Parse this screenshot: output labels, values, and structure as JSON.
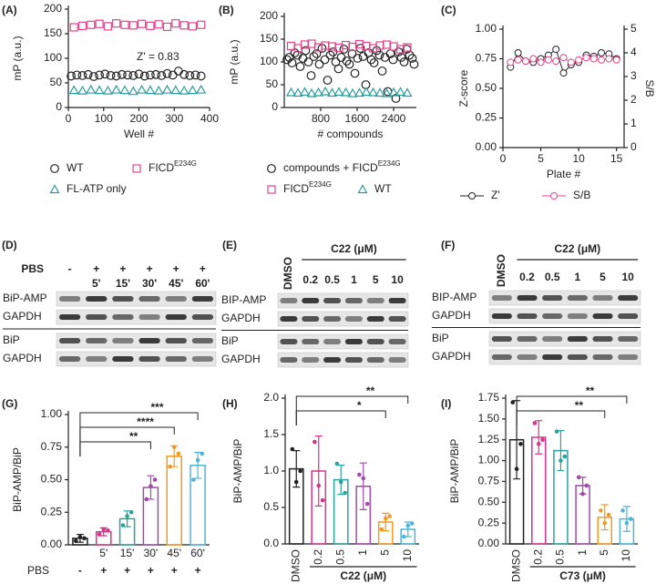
{
  "chart_data": [
    {
      "panel": "(A)",
      "type": "scatter",
      "xlabel": "Well #",
      "ylabel": "mP (a.u.)",
      "annotation": "Z' = 0.83",
      "xlim": [
        0,
        400
      ],
      "xticks": [
        0,
        100,
        200,
        300,
        400
      ],
      "ylim": [
        0,
        200
      ],
      "yticks": [
        0,
        50,
        100,
        150,
        200
      ],
      "series": [
        {
          "name": "WT",
          "color": "#222222",
          "marker": "circle",
          "x": [
            8,
            24,
            40,
            56,
            72,
            88,
            104,
            120,
            136,
            152,
            168,
            184,
            200,
            216,
            232,
            248,
            264,
            280,
            296,
            312,
            328,
            344,
            360,
            376
          ],
          "values": [
            64,
            66,
            65,
            67,
            63,
            66,
            68,
            65,
            64,
            67,
            66,
            65,
            68,
            64,
            66,
            67,
            65,
            69,
            66,
            74,
            67,
            65,
            66,
            64
          ]
        },
        {
          "name": "FICD",
          "superscript": "E234G",
          "color": "#e2458c",
          "marker": "square",
          "x": [
            16,
            40,
            64,
            88,
            112,
            136,
            160,
            184,
            208,
            232,
            256,
            280,
            304,
            328,
            352,
            376
          ],
          "values": [
            163,
            166,
            168,
            170,
            165,
            171,
            168,
            167,
            170,
            166,
            169,
            164,
            171,
            167,
            165,
            168
          ]
        },
        {
          "name": "FL-ATP only",
          "color": "#2a9d9b",
          "marker": "triangle",
          "x": [
            16,
            40,
            64,
            88,
            112,
            136,
            160,
            184,
            208,
            232,
            256,
            280,
            304,
            328,
            352,
            376
          ],
          "values": [
            35,
            34,
            36,
            35,
            34,
            36,
            35,
            33,
            36,
            35,
            34,
            36,
            35,
            34,
            35,
            36
          ]
        }
      ]
    },
    {
      "panel": "(B)",
      "type": "scatter",
      "xlabel": "# compounds",
      "ylabel": "mP (a.u.)",
      "xlim": [
        0,
        2900
      ],
      "xticks": [
        800,
        1600,
        2400
      ],
      "ylim": [
        0,
        200
      ],
      "yticks": [
        0,
        50,
        100,
        150,
        200
      ],
      "series": [
        {
          "name": "compounds + FICD",
          "superscript": "E234G",
          "color": "#222222",
          "marker": "circle",
          "x": [
            60,
            110,
            170,
            230,
            290,
            350,
            410,
            470,
            530,
            590,
            650,
            710,
            770,
            830,
            890,
            950,
            1010,
            1070,
            1130,
            1190,
            1250,
            1310,
            1370,
            1430,
            1490,
            1550,
            1610,
            1670,
            1730,
            1790,
            1850,
            1910,
            1970,
            2030,
            2090,
            2150,
            2210,
            2270,
            2330,
            2390,
            2450,
            2510,
            2570,
            2630,
            2690,
            2750,
            2810,
            2850
          ],
          "values": [
            105,
            110,
            98,
            120,
            115,
            90,
            108,
            125,
            100,
            70,
            112,
            118,
            95,
            130,
            105,
            60,
            115,
            122,
            100,
            85,
            110,
            128,
            102,
            95,
            118,
            75,
            108,
            130,
            112,
            50,
            120,
            105,
            98,
            125,
            115,
            80,
            110,
            35,
            118,
            105,
            20,
            122,
            110,
            100,
            128,
            115,
            108,
            95
          ]
        },
        {
          "name": "FICD",
          "superscript": "E234G",
          "color": "#e2458c",
          "marker": "square",
          "x": [
            150,
            300,
            450,
            600,
            750,
            900,
            1050,
            1200,
            1350,
            1500,
            1650,
            1800,
            1950,
            2100,
            2250,
            2400,
            2550,
            2700
          ],
          "values": [
            135,
            130,
            138,
            140,
            132,
            136,
            134,
            131,
            137,
            133,
            139,
            135,
            130,
            136,
            138,
            134,
            128,
            132
          ]
        },
        {
          "name": "WT",
          "color": "#2a9d9b",
          "marker": "triangle",
          "x": [
            150,
            300,
            450,
            600,
            750,
            900,
            1050,
            1200,
            1350,
            1500,
            1650,
            1800,
            1950,
            2100,
            2250,
            2400,
            2550,
            2700
          ],
          "values": [
            33,
            32,
            34,
            31,
            33,
            35,
            32,
            34,
            33,
            31,
            32,
            34,
            33,
            32,
            31,
            33,
            34,
            32
          ]
        }
      ]
    },
    {
      "panel": "(C)",
      "type": "line",
      "xlabel": "Plate #",
      "ylabel": "Z-score",
      "y2label": "S/B",
      "x": [
        1,
        2,
        3,
        4,
        5,
        6,
        7,
        8,
        9,
        10,
        11,
        12,
        13,
        14,
        15
      ],
      "xlim": [
        0,
        16
      ],
      "xticks": [
        0,
        5,
        10,
        15
      ],
      "ylim": [
        0,
        1
      ],
      "yticks": [
        {
          "value": 0,
          "label": "0.00"
        },
        0.25,
        {
          "value": 0.5,
          "label": "0.50"
        },
        0.75,
        {
          "value": 1,
          "label": "1.00"
        }
      ],
      "y2lim": [
        0,
        5
      ],
      "y2ticks": [
        0,
        1,
        2,
        3,
        4,
        5
      ],
      "series": [
        {
          "name": "Z'",
          "color": "#222222",
          "values": [
            0.68,
            0.8,
            0.73,
            0.72,
            0.75,
            0.78,
            0.83,
            0.63,
            0.7,
            0.72,
            0.78,
            0.77,
            0.8,
            0.79,
            0.75
          ]
        },
        {
          "name": "S/B",
          "color": "#e2458c",
          "axis": "y2",
          "values": [
            3.6,
            3.7,
            3.65,
            3.75,
            3.6,
            3.7,
            3.65,
            3.8,
            3.6,
            3.7,
            3.8,
            3.75,
            3.7,
            3.75,
            3.7
          ]
        }
      ]
    },
    {
      "panel": "(G)",
      "type": "bar",
      "ylabel": "BiP-AMP/BiP",
      "categories": [
        null,
        "5'",
        "15'",
        "30'",
        "45'",
        "60'"
      ],
      "row2_label": "PBS",
      "row2": [
        "-",
        "+",
        "+",
        "+",
        "+",
        "+"
      ],
      "colors": [
        "#222222",
        "#d6338a",
        "#2aa39b",
        "#a04aaa",
        "#f39a1e",
        "#4fb3d9"
      ],
      "values": [
        0.05,
        0.1,
        0.2,
        0.44,
        0.68,
        0.61
      ],
      "errors": [
        0.03,
        0.03,
        0.06,
        0.09,
        0.08,
        0.1
      ],
      "points": [
        [
          0.03,
          0.06,
          0.05
        ],
        [
          0.08,
          0.12,
          0.11
        ],
        [
          0.15,
          0.22,
          0.25
        ],
        [
          0.35,
          0.45,
          0.5
        ],
        [
          0.6,
          0.75,
          0.7
        ],
        [
          0.5,
          0.65,
          0.7
        ]
      ],
      "ylim": [
        0,
        1
      ],
      "yticks": [
        {
          "value": 0,
          "label": "0.00"
        },
        0.25,
        {
          "value": 0.5,
          "label": "0.50"
        },
        0.75,
        {
          "value": 1,
          "label": "1.00"
        }
      ],
      "significance": [
        {
          "from": 0,
          "to": 5,
          "label": "***"
        },
        {
          "from": 0,
          "to": 4,
          "label": "****"
        },
        {
          "from": 0,
          "to": 3,
          "label": "**"
        }
      ]
    },
    {
      "panel": "(H)",
      "type": "bar",
      "ylabel": "BiP-AMP/BiP",
      "xlabel": "C22 (μM)",
      "categories": [
        "DMSO",
        "0.2",
        "0.5",
        "1",
        "5",
        "10"
      ],
      "colors": [
        "#222222",
        "#d6338a",
        "#2aa39b",
        "#a04aaa",
        "#f39a1e",
        "#4fb3d9"
      ],
      "values": [
        1.03,
        1.0,
        0.88,
        0.79,
        0.3,
        0.2
      ],
      "errors": [
        0.25,
        0.48,
        0.2,
        0.32,
        0.12,
        0.1
      ],
      "points": [
        [
          1.3,
          0.85,
          1.0
        ],
        [
          1.4,
          0.8,
          0.6
        ],
        [
          1.1,
          0.85,
          0.7
        ],
        [
          0.95,
          0.9,
          0.55
        ],
        [
          0.2,
          0.35,
          0.38
        ],
        [
          0.1,
          0.25,
          0.28
        ]
      ],
      "ylim": [
        0,
        2
      ],
      "yticks": [
        {
          "value": 0,
          "label": "0.0"
        },
        0.5,
        {
          "value": 1,
          "label": "1.0"
        },
        1.5,
        {
          "value": 2,
          "label": "2.0"
        }
      ],
      "significance": [
        {
          "from": 0,
          "to": 5,
          "label": "**"
        },
        {
          "from": 0,
          "to": 4,
          "label": "*"
        }
      ]
    },
    {
      "panel": "(I)",
      "type": "bar",
      "ylabel": "BiP-AMP/BiP",
      "xlabel": "C73 (μM)",
      "categories": [
        "DMSO",
        "0.2",
        "0.5",
        "1",
        "5",
        "10"
      ],
      "colors": [
        "#222222",
        "#d6338a",
        "#2aa39b",
        "#a04aaa",
        "#f39a1e",
        "#4fb3d9"
      ],
      "values": [
        1.25,
        1.28,
        1.12,
        0.7,
        0.32,
        0.3
      ],
      "errors": [
        0.47,
        0.2,
        0.24,
        0.1,
        0.15,
        0.15
      ],
      "points": [
        [
          1.7,
          0.9,
          1.2
        ],
        [
          1.45,
          1.2,
          1.25
        ],
        [
          1.35,
          1.0,
          1.05
        ],
        [
          0.8,
          0.6,
          0.7
        ],
        [
          0.4,
          0.25,
          0.35
        ],
        [
          0.4,
          0.25,
          0.3
        ]
      ],
      "ylim": [
        0,
        1.75
      ],
      "yticks": [
        {
          "value": 0,
          "label": "0.00"
        },
        0.25,
        {
          "value": 0.5,
          "label": "0.50"
        },
        0.75,
        {
          "value": 1,
          "label": "1.00"
        },
        1.25,
        {
          "value": 1.5,
          "label": "1.50"
        },
        1.75
      ],
      "significance": [
        {
          "from": 0,
          "to": 5,
          "label": "**"
        },
        {
          "from": 0,
          "to": 4,
          "label": "**"
        }
      ]
    }
  ],
  "blots": [
    {
      "panel": "(D)",
      "treatment": "PBS",
      "signs": [
        "-",
        "+",
        "+",
        "+",
        "+",
        "+"
      ],
      "times": [
        null,
        "5'",
        "15'",
        "30'",
        "45'",
        "60'"
      ],
      "rows": [
        "BiP-AMP",
        "GAPDH",
        "BiP",
        "GAPDH"
      ]
    },
    {
      "panel": "(E)",
      "control": "DMSO",
      "compound": "C22 (μM)",
      "doses": [
        "0.2",
        "0.5",
        "1",
        "5",
        "10"
      ],
      "rows": [
        "BIP-AMP",
        "GAPDH",
        "BiP",
        "GAPDH"
      ]
    },
    {
      "panel": "(F)",
      "control": "DMSO",
      "compound": "C22 (μM)",
      "doses": [
        "0.2",
        "0.5",
        "1",
        "5",
        "10"
      ],
      "rows": [
        "BIP-AMP",
        "GAPDH",
        "BiP",
        "GAPDH"
      ]
    }
  ]
}
